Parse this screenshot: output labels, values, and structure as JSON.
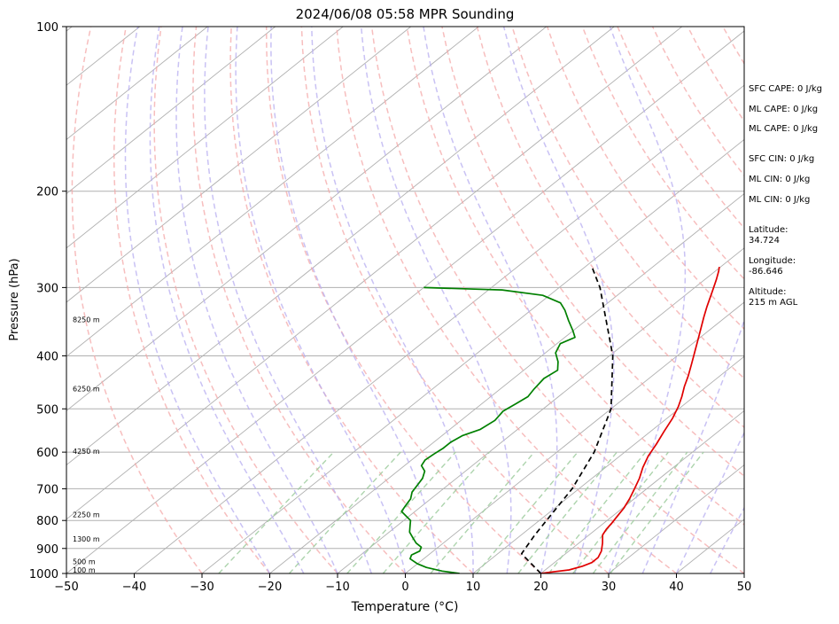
{
  "chart_data": {
    "type": "line",
    "subtype": "skew-t log-p sounding",
    "title": "2024/06/08 05:58 MPR Sounding",
    "xlabel": "Temperature (°C)",
    "ylabel": "Pressure (hPa)",
    "xlim": [
      -50,
      50
    ],
    "ylim": [
      1000,
      100
    ],
    "y_scale": "log",
    "x_ticks": [
      -50,
      -40,
      -30,
      -20,
      -10,
      0,
      10,
      20,
      30,
      40,
      50
    ],
    "x_tick_labels": [
      "−50",
      "−40",
      "−30",
      "−20",
      "−10",
      "0",
      "10",
      "20",
      "30",
      "40",
      "50"
    ],
    "y_ticks": [
      1000,
      900,
      800,
      700,
      600,
      500,
      400,
      300,
      200,
      100
    ],
    "y_tick_labels": [
      "1000",
      "900",
      "800",
      "700",
      "600",
      "500",
      "400",
      "300",
      "200",
      "100"
    ],
    "grid": true,
    "height_labels": [
      {
        "p": 985,
        "label": "100 m"
      },
      {
        "p": 950,
        "label": "500 m"
      },
      {
        "p": 865,
        "label": "1300 m"
      },
      {
        "p": 780,
        "label": "2250 m"
      },
      {
        "p": 597,
        "label": "4250 m"
      },
      {
        "p": 459,
        "label": "6250 m"
      },
      {
        "p": 343,
        "label": "8250 m"
      }
    ],
    "series": [
      {
        "role": "temperature",
        "color": "#e00000",
        "points": [
          [
            1000,
            20
          ],
          [
            995,
            21
          ],
          [
            985,
            23.5
          ],
          [
            970,
            24.8
          ],
          [
            955,
            25.5
          ],
          [
            935,
            25.5
          ],
          [
            910,
            24.8
          ],
          [
            880,
            23.5
          ],
          [
            850,
            22
          ],
          [
            830,
            21.5
          ],
          [
            810,
            21.2
          ],
          [
            790,
            20.8
          ],
          [
            760,
            20.2
          ],
          [
            730,
            19.3
          ],
          [
            700,
            18.2
          ],
          [
            670,
            17.0
          ],
          [
            640,
            15.5
          ],
          [
            610,
            14.2
          ],
          [
            580,
            13.2
          ],
          [
            550,
            12.0
          ],
          [
            520,
            10.8
          ],
          [
            495,
            9.5
          ],
          [
            475,
            8.2
          ],
          [
            455,
            6.7
          ],
          [
            435,
            5.3
          ],
          [
            415,
            3.7
          ],
          [
            395,
            2.0
          ],
          [
            375,
            0.2
          ],
          [
            355,
            -1.7
          ],
          [
            340,
            -3.2
          ],
          [
            325,
            -4.7
          ],
          [
            305,
            -6.7
          ],
          [
            290,
            -8.3
          ],
          [
            280,
            -9.5
          ],
          [
            275,
            -10.2
          ]
        ]
      },
      {
        "role": "dewpoint",
        "color": "#008000",
        "points": [
          [
            1000,
            8
          ],
          [
            990,
            5
          ],
          [
            975,
            2
          ],
          [
            960,
            0
          ],
          [
            940,
            -2
          ],
          [
            925,
            -2.5
          ],
          [
            910,
            -2
          ],
          [
            895,
            -2.5
          ],
          [
            880,
            -4
          ],
          [
            860,
            -5.5
          ],
          [
            840,
            -7
          ],
          [
            820,
            -8
          ],
          [
            800,
            -9
          ],
          [
            785,
            -10.5
          ],
          [
            770,
            -12
          ],
          [
            750,
            -12.5
          ],
          [
            730,
            -13
          ],
          [
            710,
            -14
          ],
          [
            690,
            -14.5
          ],
          [
            670,
            -15
          ],
          [
            650,
            -16
          ],
          [
            635,
            -17.5
          ],
          [
            620,
            -18
          ],
          [
            605,
            -17.8
          ],
          [
            590,
            -17.5
          ],
          [
            575,
            -17.5
          ],
          [
            560,
            -17
          ],
          [
            545,
            -15.5
          ],
          [
            525,
            -15
          ],
          [
            505,
            -15.5
          ],
          [
            490,
            -15
          ],
          [
            475,
            -14.5
          ],
          [
            460,
            -15
          ],
          [
            440,
            -15.5
          ],
          [
            425,
            -15
          ],
          [
            410,
            -16.5
          ],
          [
            395,
            -18.5
          ],
          [
            380,
            -19.5
          ],
          [
            370,
            -18.5
          ],
          [
            360,
            -20
          ],
          [
            345,
            -22.5
          ],
          [
            330,
            -25
          ],
          [
            320,
            -27
          ],
          [
            310,
            -31
          ],
          [
            303,
            -38
          ],
          [
            300,
            -50
          ]
        ]
      },
      {
        "role": "parcel",
        "color": "#000000",
        "dash": "6 4",
        "points": [
          [
            1000,
            20
          ],
          [
            920,
            13.5
          ],
          [
            850,
            12
          ],
          [
            700,
            9
          ],
          [
            600,
            5.5
          ],
          [
            500,
            0
          ],
          [
            400,
            -9.5
          ],
          [
            300,
            -24
          ],
          [
            275,
            -29
          ]
        ]
      }
    ],
    "side_text": [
      "SFC CAPE: 0 J/kg",
      "ML CAPE: 0 J/kg",
      "ML CAPE: 0 J/kg",
      "SFC CIN: 0 J/kg",
      "ML CIN: 0 J/kg",
      "ML CIN: 0 J/kg",
      "Latitude:",
      "34.724",
      "Longitude:",
      "-86.646",
      "Altitude:",
      "215 m AGL"
    ],
    "colors": {
      "dry_adiabat": "#f4a8a8",
      "moist_adiabat": "#b7aef0",
      "mixing_ratio": "#9fcc9f",
      "isotherm": "#b0b0b0",
      "isobar": "#b0b0b0"
    }
  }
}
